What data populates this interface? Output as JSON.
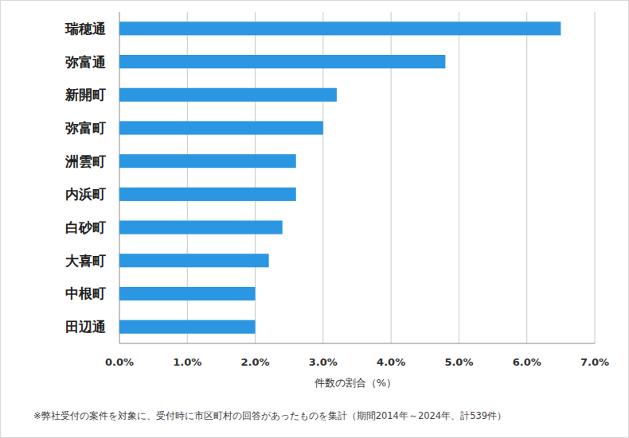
{
  "chart_data": {
    "type": "bar",
    "orientation": "horizontal",
    "categories": [
      "瑞穂通",
      "弥富通",
      "新開町",
      "弥富町",
      "洲雲町",
      "内浜町",
      "白砂町",
      "大喜町",
      "中根町",
      "田辺通"
    ],
    "values": [
      6.5,
      4.8,
      3.2,
      3.0,
      2.6,
      2.6,
      2.4,
      2.2,
      2.0,
      2.0
    ],
    "color": "#2b96e1",
    "xlim": [
      0,
      7
    ],
    "xticks": [
      {
        "value": 0,
        "label": "0.0%"
      },
      {
        "value": 1,
        "label": "1.0%"
      },
      {
        "value": 2,
        "label": "2.0%"
      },
      {
        "value": 3,
        "label": "3.0%"
      },
      {
        "value": 4,
        "label": "4.0%"
      },
      {
        "value": 5,
        "label": "5.0%"
      },
      {
        "value": 6,
        "label": "6.0%"
      },
      {
        "value": 7,
        "label": "7.0%"
      }
    ],
    "x_label": "件数の割合（%）",
    "annotations": [
      "※弊社受付の案件を対象に、受付時に市区町村の回答があったものを集計（期間2014年～2024年、計539件）"
    ],
    "grid": true
  }
}
